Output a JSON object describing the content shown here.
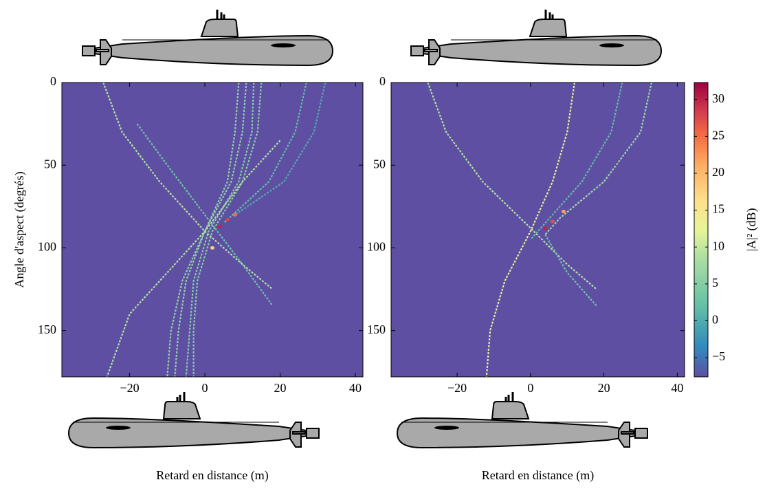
{
  "chart_data": [
    {
      "type": "heatmap",
      "xlabel": "Retard en distance (m)",
      "ylabel": "Angle d'aspect (degrés)",
      "xlim": [
        -38,
        42
      ],
      "ylim": [
        0,
        178
      ],
      "xticks": [
        {
          "value": -20,
          "label": "−20"
        },
        0,
        20,
        40
      ],
      "yticks": [
        0,
        50,
        100,
        150
      ],
      "traces": [
        {
          "x": [
            9,
            8,
            6,
            0,
            -5,
            -7,
            -8
          ],
          "y": [
            0,
            30,
            60,
            90,
            120,
            150,
            178
          ],
          "value": 6
        },
        {
          "x": [
            11,
            10,
            7,
            0,
            -6,
            -9,
            -10
          ],
          "y": [
            0,
            30,
            60,
            90,
            120,
            150,
            178
          ],
          "value": 6
        },
        {
          "x": [
            13,
            12.5,
            9,
            1,
            -3,
            -4,
            -5
          ],
          "y": [
            0,
            30,
            60,
            90,
            120,
            150,
            178
          ],
          "value": 5
        },
        {
          "x": [
            15,
            14,
            10,
            2,
            -2,
            -3,
            -3
          ],
          "y": [
            0,
            30,
            60,
            90,
            120,
            150,
            178
          ],
          "value": 5
        },
        {
          "x": [
            27,
            24,
            17,
            5
          ],
          "y": [
            0,
            30,
            60,
            85
          ],
          "value": 2
        },
        {
          "x": [
            32,
            29,
            21,
            8
          ],
          "y": [
            0,
            30,
            60,
            80
          ],
          "value": 0
        },
        {
          "x": [
            -27,
            -22,
            -12,
            0,
            10,
            18
          ],
          "y": [
            0,
            30,
            60,
            90,
            110,
            125
          ],
          "value": 9
        },
        {
          "x": [
            20,
            10,
            0,
            -10,
            -20,
            -26
          ],
          "y": [
            35,
            60,
            90,
            115,
            140,
            178
          ],
          "value": 9
        },
        {
          "x": [
            -18,
            -10,
            0,
            10,
            18
          ],
          "y": [
            25,
            50,
            80,
            110,
            135
          ],
          "value": 3
        }
      ],
      "spots": [
        {
          "x": 4,
          "y": 87,
          "value": 30
        },
        {
          "x": 6,
          "y": 83,
          "value": 28
        },
        {
          "x": 8,
          "y": 80,
          "value": 25
        },
        {
          "x": 2,
          "y": 100,
          "value": 18
        }
      ]
    },
    {
      "type": "heatmap",
      "xlabel": "Retard en distance (m)",
      "xlim": [
        -38,
        42
      ],
      "ylim": [
        0,
        178
      ],
      "xticks": [
        {
          "value": -20,
          "label": "−20"
        },
        0,
        20,
        40
      ],
      "yticks": [
        0,
        50,
        100,
        150
      ],
      "traces": [
        {
          "x": [
            12,
            10,
            6,
            0,
            -7,
            -11,
            -12
          ],
          "y": [
            0,
            30,
            60,
            90,
            120,
            150,
            178
          ],
          "value": 12
        },
        {
          "x": [
            -28,
            -23,
            -13,
            0,
            10,
            18
          ],
          "y": [
            0,
            30,
            60,
            88,
            110,
            125
          ],
          "value": 9
        },
        {
          "x": [
            33,
            30,
            20,
            8,
            4
          ],
          "y": [
            0,
            30,
            60,
            82,
            92
          ],
          "value": 7
        },
        {
          "x": [
            25,
            22,
            14,
            4,
            0
          ],
          "y": [
            0,
            30,
            60,
            85,
            95
          ],
          "value": 2
        },
        {
          "x": [
            4,
            10,
            18
          ],
          "y": [
            92,
            115,
            135
          ],
          "value": 3
        }
      ],
      "spots": [
        {
          "x": 4,
          "y": 88,
          "value": 30
        },
        {
          "x": 6,
          "y": 84,
          "value": 27
        },
        {
          "x": 9,
          "y": 78,
          "value": 22
        }
      ],
      "colorbar": {
        "label": "|A|² (dB)",
        "lim": [
          -7.6,
          32.3
        ],
        "ticks": [
          {
            "value": -5,
            "label": "−5"
          },
          0,
          5,
          10,
          15,
          20,
          25,
          30
        ]
      }
    }
  ]
}
